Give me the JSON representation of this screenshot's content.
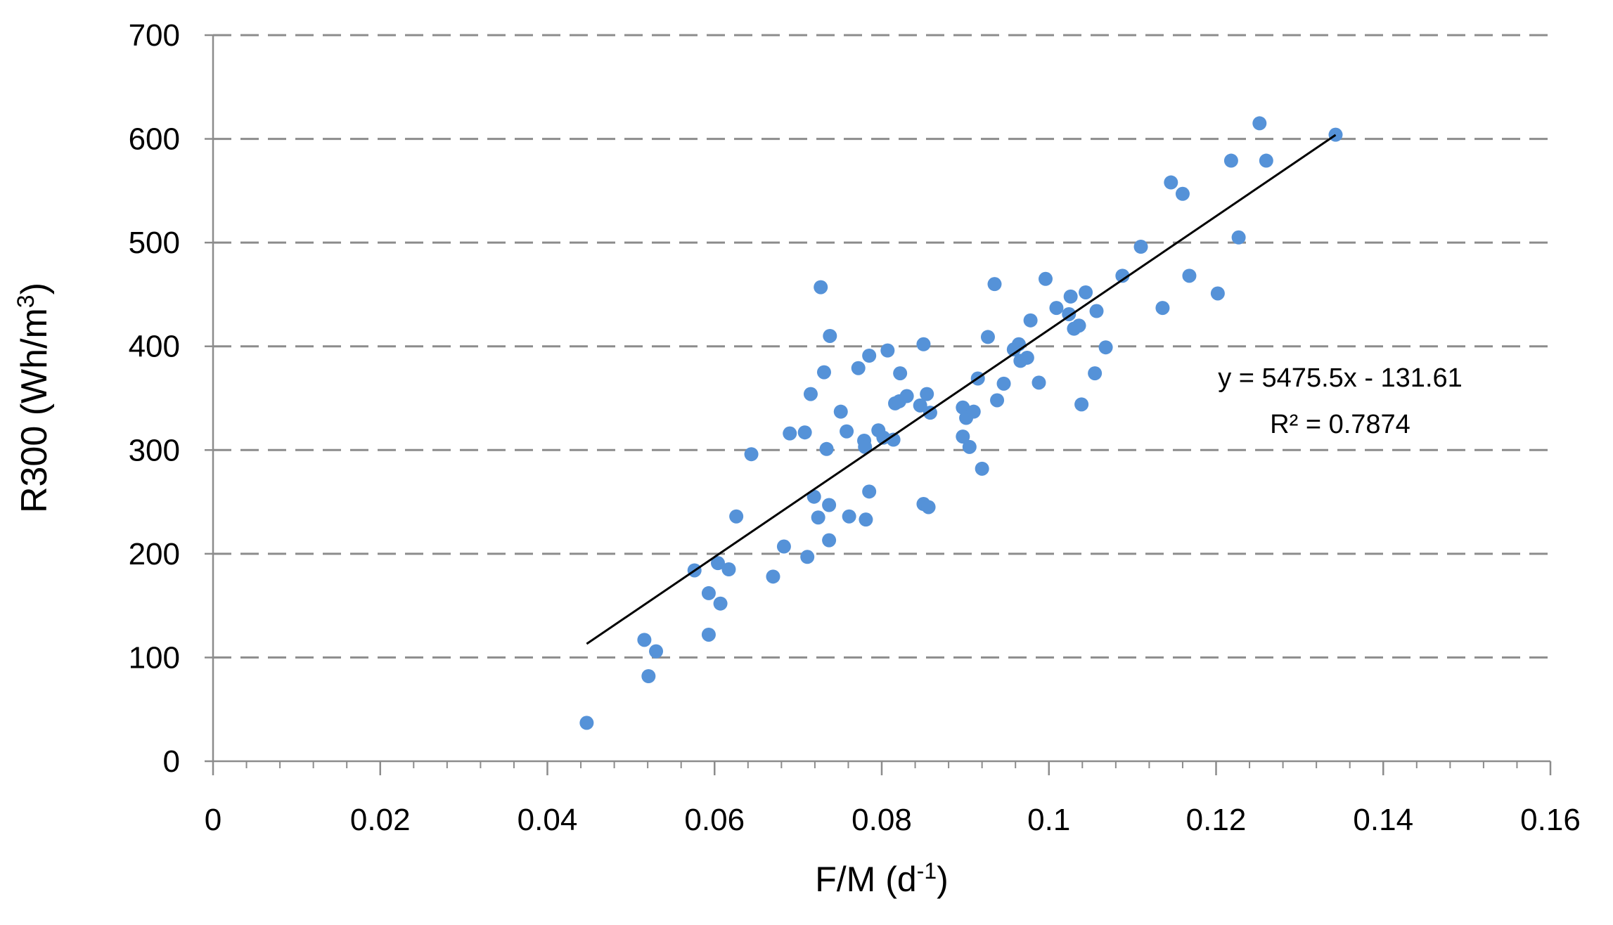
{
  "chart_data": {
    "type": "scatter",
    "xlabel": {
      "text": "F/M (d",
      "sup": "-1",
      "end": ")"
    },
    "ylabel": {
      "text": "R300 (Wh/m",
      "sup": "3",
      "end": ")"
    },
    "xlim": [
      0,
      0.16
    ],
    "ylim": [
      0,
      700
    ],
    "xticks": [
      0,
      0.02,
      0.04,
      0.06,
      0.08,
      0.1,
      0.12,
      0.14,
      0.16
    ],
    "yticks": [
      0,
      100,
      200,
      300,
      400,
      500,
      600,
      700
    ],
    "grid": true,
    "series": [
      {
        "color": "#5592d8",
        "x": [
          0.0447,
          0.0516,
          0.0521,
          0.053,
          0.0576,
          0.0593,
          0.0593,
          0.0604,
          0.0607,
          0.0617,
          0.0626,
          0.0644,
          0.067,
          0.0683,
          0.069,
          0.0708,
          0.0711,
          0.0715,
          0.0719,
          0.0724,
          0.0727,
          0.0731,
          0.0734,
          0.0737,
          0.0737,
          0.0738,
          0.0751,
          0.0758,
          0.0761,
          0.0772,
          0.0779,
          0.078,
          0.0781,
          0.0785,
          0.0785,
          0.0796,
          0.0802,
          0.0807,
          0.0814,
          0.0816,
          0.0822,
          0.0821,
          0.083,
          0.0846,
          0.085,
          0.085,
          0.0854,
          0.0856,
          0.0858,
          0.0897,
          0.0897,
          0.0901,
          0.0905,
          0.091,
          0.0915,
          0.092,
          0.0927,
          0.0935,
          0.0938,
          0.0946,
          0.0958,
          0.0964,
          0.0966,
          0.0974,
          0.0978,
          0.0988,
          0.0996,
          0.1009,
          0.1024,
          0.1026,
          0.103,
          0.1036,
          0.1039,
          0.1044,
          0.1055,
          0.1057,
          0.1068,
          0.1088,
          0.111,
          0.1136,
          0.1146,
          0.116,
          0.1168,
          0.1202,
          0.1218,
          0.1227,
          0.1252,
          0.126,
          0.1343
        ],
        "values": [
          37,
          117,
          82,
          106,
          184,
          162,
          122,
          191,
          152,
          185,
          236,
          296,
          178,
          207,
          316,
          317,
          197,
          354,
          255,
          235,
          457,
          375,
          301,
          247,
          213,
          410,
          337,
          318,
          236,
          379,
          309,
          303,
          233,
          260,
          391,
          319,
          312,
          396,
          310,
          345,
          374,
          347,
          352,
          343,
          402,
          248,
          354,
          245,
          336,
          313,
          341,
          331,
          303,
          337,
          369,
          282,
          409,
          460,
          348,
          364,
          397,
          402,
          386,
          389,
          425,
          365,
          465,
          437,
          431,
          448,
          417,
          420,
          344,
          452,
          374,
          434,
          399,
          468,
          496,
          437,
          558,
          547,
          468,
          451,
          579,
          505,
          615,
          579,
          604
        ]
      }
    ],
    "trendline": {
      "slope": 5475.5,
      "intercept": -131.61,
      "color": "#000000",
      "equation": "y = 5475.5x - 131.61",
      "r2": "R² = 0.7874"
    }
  }
}
